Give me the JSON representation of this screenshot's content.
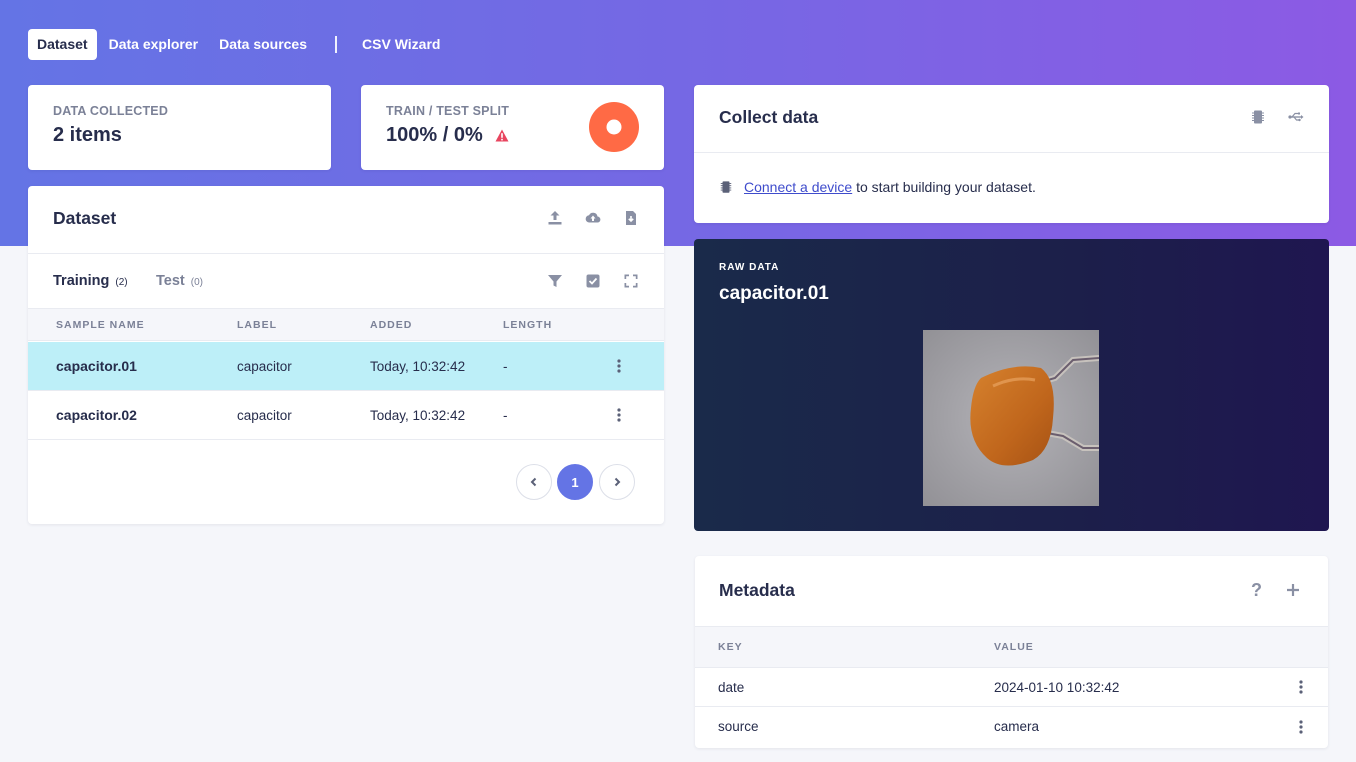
{
  "nav": {
    "tabs": [
      {
        "label": "Dataset",
        "active": true
      },
      {
        "label": "Data explorer"
      },
      {
        "label": "Data sources"
      },
      {
        "label": "CSV Wizard"
      }
    ]
  },
  "stats": {
    "collected_label": "DATA COLLECTED",
    "collected_value": "2 items",
    "split_label": "TRAIN / TEST SPLIT",
    "split_value": "100% / 0%",
    "split_train_fraction": 1.0
  },
  "dataset": {
    "title": "Dataset",
    "actions": [
      "upload-icon",
      "cloud-upload-icon",
      "export-file-icon"
    ],
    "tabs": [
      {
        "label": "Training",
        "count": "(2)"
      },
      {
        "label": "Test",
        "count": "(0)"
      }
    ],
    "columns": [
      "SAMPLE NAME",
      "LABEL",
      "ADDED",
      "LENGTH"
    ],
    "rows": [
      {
        "name": "capacitor.01",
        "label": "capacitor",
        "added": "Today, 10:32:42",
        "length": "-",
        "selected": true
      },
      {
        "name": "capacitor.02",
        "label": "capacitor",
        "added": "Today, 10:32:42",
        "length": "-"
      }
    ],
    "page": "1"
  },
  "collect": {
    "title": "Collect data",
    "link_text": "Connect a device",
    "message": " to start building your dataset."
  },
  "raw": {
    "kicker": "RAW DATA",
    "title": "capacitor.01"
  },
  "metadata": {
    "title": "Metadata",
    "help": "?",
    "columns": [
      "KEY",
      "VALUE"
    ],
    "rows": [
      {
        "key": "date",
        "value": "2024-01-10 10:32:42"
      },
      {
        "key": "source",
        "value": "camera"
      }
    ]
  },
  "colors": {
    "accent": "#6474e5",
    "selected_row": "#bdeff8",
    "warning": "#e8455f",
    "pie": "#ff6a45",
    "raw_bg": "#1a2148"
  }
}
